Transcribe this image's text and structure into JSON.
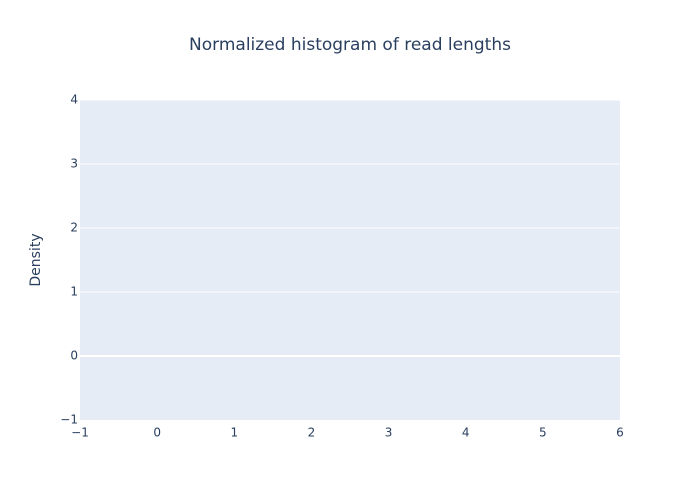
{
  "chart_data": {
    "type": "bar",
    "title": "Normalized histogram of read lengths",
    "xlabel": "",
    "ylabel": "Density",
    "xlim": [
      -1,
      6
    ],
    "ylim": [
      -1,
      4
    ],
    "x_ticks": [
      -1,
      0,
      1,
      2,
      3,
      4,
      5,
      6
    ],
    "y_ticks": [
      -1,
      0,
      1,
      2,
      3,
      4
    ],
    "x_tick_labels": [
      "−1",
      "0",
      "1",
      "2",
      "3",
      "4",
      "5",
      "6"
    ],
    "y_tick_labels": [
      "−1",
      "0",
      "1",
      "2",
      "3",
      "4"
    ],
    "series": [],
    "grid": true,
    "colors": {
      "plot_background": "#e5ecf6",
      "grid": "#ffffff",
      "text": "#2a3f5f"
    }
  }
}
